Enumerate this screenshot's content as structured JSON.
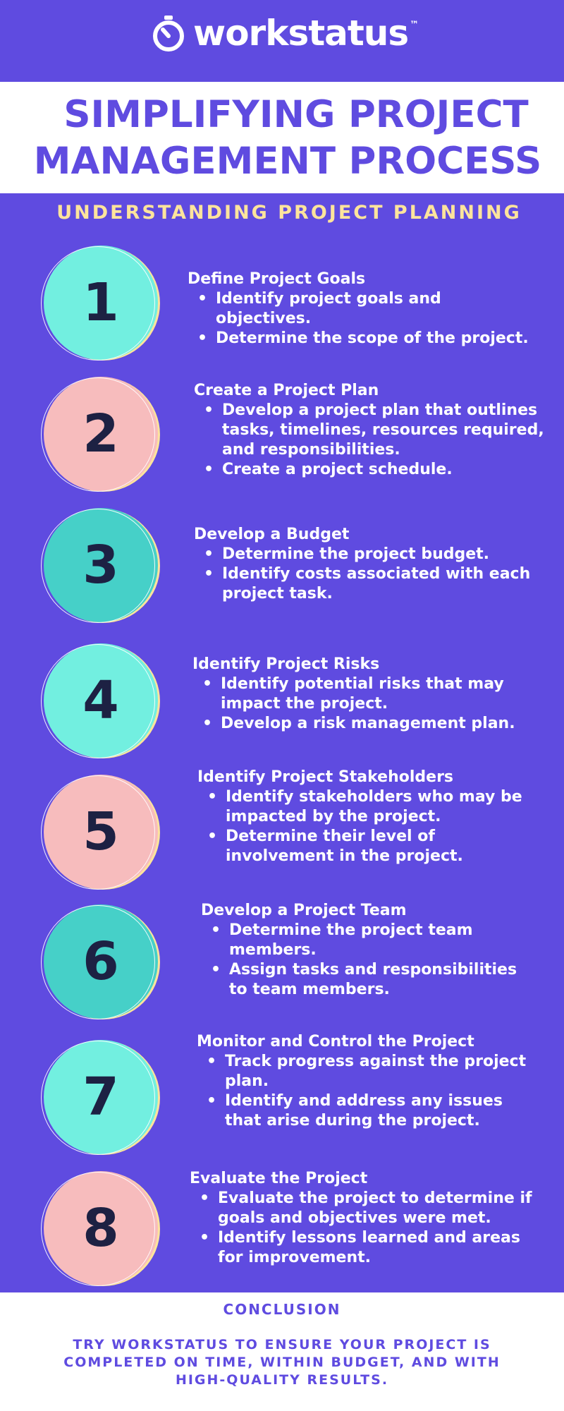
{
  "brand": {
    "name": "workstatus",
    "tm": "™",
    "icon": "stopwatch-icon"
  },
  "title": {
    "line1": "SIMPLIFYING PROJECT",
    "line2": "MANAGEMENT PROCESS"
  },
  "subtitle": "UNDERSTANDING PROJECT PLANNING",
  "steps": [
    {
      "number": "1",
      "title": "Define Project Goals",
      "bullets": [
        "Identify project goals and objectives.",
        "Determine the scope of the project."
      ]
    },
    {
      "number": "2",
      "title": "Create a Project Plan",
      "bullets": [
        "Develop a project plan that outlines tasks, timelines, resources required, and responsibilities.",
        "Create a project schedule."
      ]
    },
    {
      "number": "3",
      "title": "Develop a Budget",
      "bullets": [
        "Determine the project budget.",
        "Identify costs associated with each project task."
      ]
    },
    {
      "number": "4",
      "title": "Identify Project Risks",
      "bullets": [
        "Identify potential risks that may impact the project.",
        "Develop a risk management plan."
      ]
    },
    {
      "number": "5",
      "title": "Identify Project Stakeholders",
      "bullets": [
        "Identify stakeholders who may be impacted by the project.",
        "Determine their level of involvement in the project."
      ]
    },
    {
      "number": "6",
      "title": "Develop a Project Team",
      "bullets": [
        "Determine the project team members.",
        "Assign tasks and responsibilities to team members."
      ]
    },
    {
      "number": "7",
      "title": "Monitor and Control the Project",
      "bullets": [
        "Track progress against the project plan.",
        "Identify and address any issues that arise during the project."
      ]
    },
    {
      "number": "8",
      "title": "Evaluate the Project",
      "bullets": [
        "Evaluate the project to determine if goals and objectives were met.",
        "Identify lessons learned and areas for improvement."
      ]
    }
  ],
  "footer": {
    "heading": "CONCLUSION",
    "text": "TRY WORKSTATUS TO ENSURE YOUR PROJECT IS COMPLETED ON TIME, WITHIN BUDGET, AND WITH HIGH-QUALITY RESULTS."
  },
  "colors": {
    "background": "#5f4be0",
    "accent_yellow": "#fde49c",
    "circle_aqua": "#72efe0",
    "circle_pink": "#f7bcbd",
    "circle_teal": "#46d0c8",
    "number_dark": "#1d2143"
  }
}
